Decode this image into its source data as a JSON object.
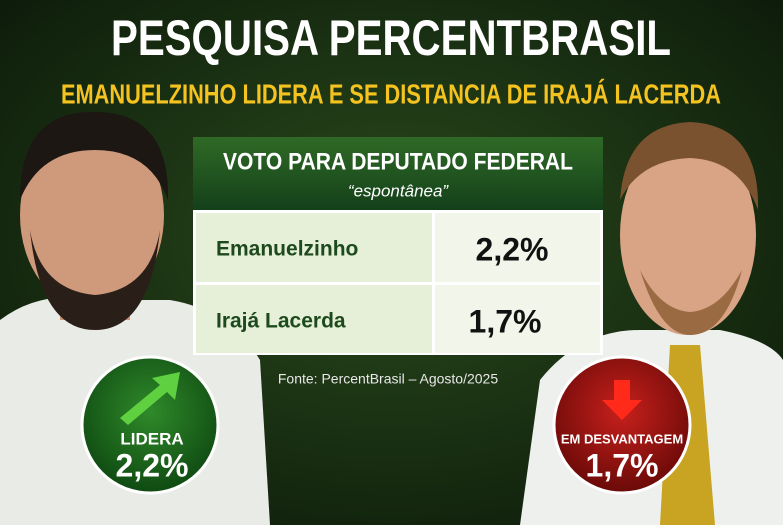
{
  "header": {
    "title": "PESQUISA PERCENTBRASIL",
    "subtitle": "EMANUELZINHO LIDERA E SE DISTANCIA DE IRAJÁ LACERDA"
  },
  "table": {
    "title": "VOTO PARA DEPUTADO FEDERAL",
    "subtitle": "“espontânea”",
    "rows": [
      [
        "Emanuelzinho",
        "2,2%"
      ],
      [
        "Irajá Lacerda",
        "1,7%"
      ]
    ]
  },
  "source": "Fonte: PercentBrasil – Agosto/2025",
  "badges": [
    {
      "label": "LIDERA",
      "value": "2,2%"
    },
    {
      "label": "EM DESVANTAGEM",
      "value": "1,7%"
    }
  ]
}
